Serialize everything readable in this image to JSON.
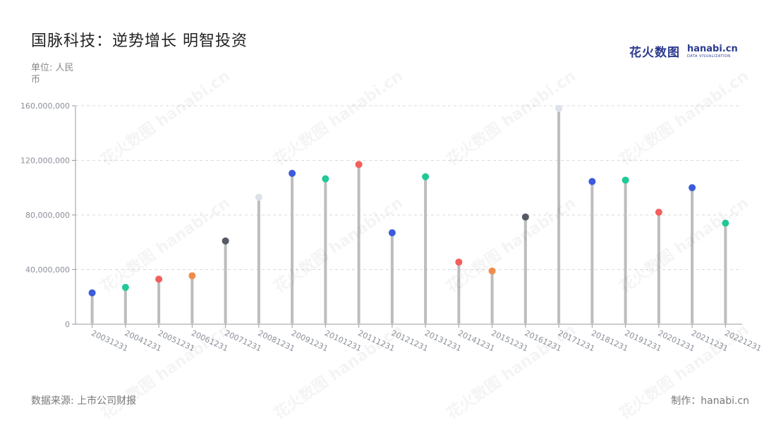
{
  "title": "国脉科技：逆势增长 明智投资",
  "unit_label": "单位: 人民币",
  "source_label": "数据来源: 上市公司财报",
  "credit_label": "制作：hanabi.cn",
  "logo": {
    "cn": "花火数图",
    "en": "hanabi.cn",
    "sub": "DATA VISUALIZATION"
  },
  "watermark_text": "花火数图 hanabi.cn",
  "chart_data": {
    "type": "lollipop",
    "categories": [
      "20031231",
      "20041231",
      "20051231",
      "20061231",
      "20071231",
      "20081231",
      "20091231",
      "20101231",
      "20111231",
      "20121231",
      "20131231",
      "20141231",
      "20151231",
      "20161231",
      "20171231",
      "20181231",
      "20191231",
      "20201231",
      "20211231",
      "20221231"
    ],
    "values": [
      23000000,
      27000000,
      33000000,
      35500000,
      61000000,
      93000000,
      110500000,
      106500000,
      117000000,
      67000000,
      108000000,
      45500000,
      39000000,
      78500000,
      158000000,
      104500000,
      105500000,
      82000000,
      100000000,
      74000000
    ],
    "colors": [
      "#3b5bdb",
      "#20c997",
      "#f25f5c",
      "#f08c4b",
      "#555a64",
      "#dde1ea",
      "#3b5bdb",
      "#20c997",
      "#f25f5c",
      "#3b5bdb",
      "#20c997",
      "#f25f5c",
      "#f08c4b",
      "#555a64",
      "#dde1ea",
      "#3b5bdb",
      "#20c997",
      "#f25f5c",
      "#3b5bdb",
      "#20c997"
    ],
    "ylim": [
      0,
      160000000
    ],
    "yticks": [
      0,
      40000000,
      80000000,
      120000000,
      160000000
    ],
    "ytick_labels": [
      "0",
      "40,000,000",
      "80,000,000",
      "120,000,000",
      "160,000,000"
    ],
    "grid": true,
    "stem_color": "#bdbdbd"
  }
}
